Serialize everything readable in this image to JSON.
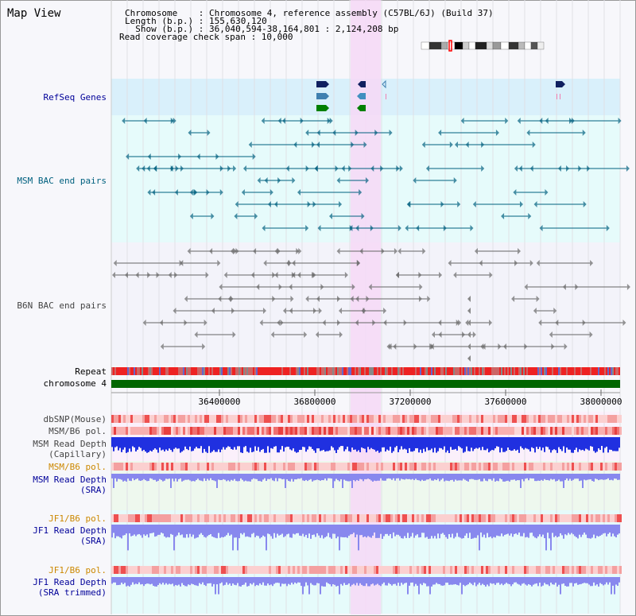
{
  "header": {
    "title": "Map View",
    "info_lines": [
      "Chromosome    : Chromosome 4, reference assembly (C57BL/6J) (Build 37)",
      "Length (b.p.) : 155,630,120",
      "  Show (b.p.) : 36,040,594-38,164,801 : 2,124,208 bp",
      "Read coverage check span : 10,000"
    ]
  },
  "tracks": {
    "refseq": "RefSeq Genes",
    "msm_bac": "MSM BAC end pairs",
    "b6n_bac": "B6N BAC end pairs",
    "repeat": "Repeat",
    "chromosome": "chromosome 4",
    "dbsnp": "dbSNP(Mouse)",
    "msm_b6_pol_1": "MSM/B6 pol.",
    "msm_depth_cap": "MSM Read Depth\n(Capillary)",
    "msm_b6_pol_2": "MSM/B6 pol.",
    "msm_depth_sra": "MSM Read Depth\n(SRA)",
    "jf1_b6_pol_1": "JF1/B6 pol.",
    "jf1_depth_sra": "JF1 Read Depth\n(SRA)",
    "jf1_b6_pol_2": "JF1/B6 pol.",
    "jf1_depth_trim": "JF1 Read Depth\n(SRA trimmed)"
  },
  "axis": {
    "ticks": [
      "36400000",
      "36800000",
      "37200000",
      "37600000",
      "38000000"
    ]
  },
  "colors": {
    "refseq_bg": "#d9f0fb",
    "msm_bac": "#00607f",
    "b6n_bac": "#666666",
    "chromosome_bar": "#006600",
    "highlight": "#f6d8f6",
    "depth_blue": "#2030e0",
    "depth_light": "#8888ee",
    "pol_red": "#ee4444",
    "label_blue": "#000099",
    "label_orange": "#cc8800"
  }
}
